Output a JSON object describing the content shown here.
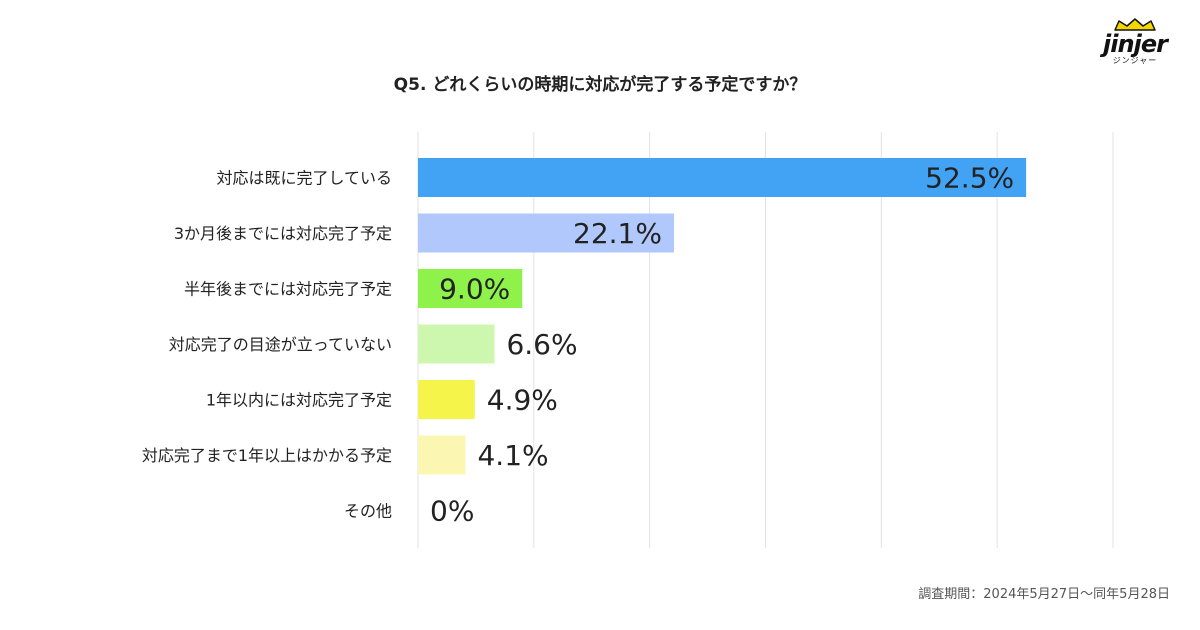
{
  "logo": {
    "word": "jinjer",
    "sub": "ジンジャー"
  },
  "chart_data": {
    "type": "bar",
    "orientation": "horizontal",
    "title": "Q5. どれくらいの時期に対応が完了する予定ですか？",
    "categories": [
      "対応は既に完了している",
      "3か月後までには対応完了予定",
      "半年後までには対応完了予定",
      "対応完了の目途が立っていない",
      "1年以内には対応完了予定",
      "対応完了まで1年以上はかかる予定",
      "その他"
    ],
    "values": [
      52.5,
      22.1,
      9.0,
      6.6,
      4.9,
      4.1,
      0
    ],
    "labels": [
      "52.5%",
      "22.1%",
      "9.0%",
      "6.6%",
      "4.9%",
      "4.1%",
      "0%"
    ],
    "colors": [
      "#42a2f3",
      "#b0c8fb",
      "#8ef24a",
      "#cdf7af",
      "#f4f44b",
      "#fbf7b3",
      "#cccccc"
    ],
    "xlim": [
      0,
      60
    ],
    "grid": true
  },
  "footnote": "調査期間：2024年5月27日〜同年5月28日"
}
